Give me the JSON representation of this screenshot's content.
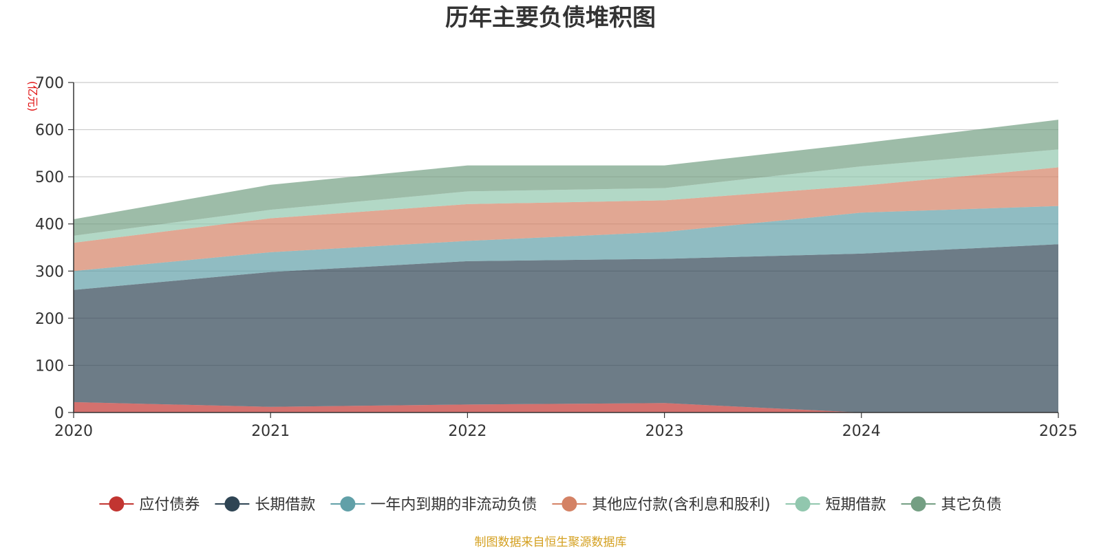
{
  "chart_data": {
    "type": "area",
    "stacked": true,
    "title": "历年主要负债堆积图",
    "unit": "(亿元)",
    "x": [
      "2020",
      "2021",
      "2022",
      "2023",
      "2024",
      "2025"
    ],
    "ylim": [
      0,
      700
    ],
    "yticks": [
      "0",
      "100",
      "200",
      "300",
      "400",
      "500",
      "600",
      "700"
    ],
    "grid": true,
    "legend_position": "bottom",
    "source": "制图数据来自恒生聚源数据库",
    "series": [
      {
        "name": "应付债券",
        "color": "#c23531",
        "values": [
          22,
          12,
          17,
          20,
          0,
          0
        ]
      },
      {
        "name": "长期借款",
        "color": "#2f4554",
        "values": [
          238,
          286,
          304,
          306,
          337,
          357
        ]
      },
      {
        "name": "一年内到期的非流动负债",
        "color": "#61a0a8",
        "values": [
          40,
          42,
          43,
          57,
          87,
          81
        ]
      },
      {
        "name": "其他应付款(含利息和股利)",
        "color": "#d48265",
        "values": [
          60,
          72,
          78,
          67,
          57,
          82
        ]
      },
      {
        "name": "短期借款",
        "color": "#91c7ae",
        "values": [
          15,
          18,
          27,
          26,
          41,
          38
        ]
      },
      {
        "name": "其它负债",
        "color": "#749f83",
        "values": [
          35,
          53,
          55,
          48,
          49,
          63
        ]
      }
    ]
  }
}
